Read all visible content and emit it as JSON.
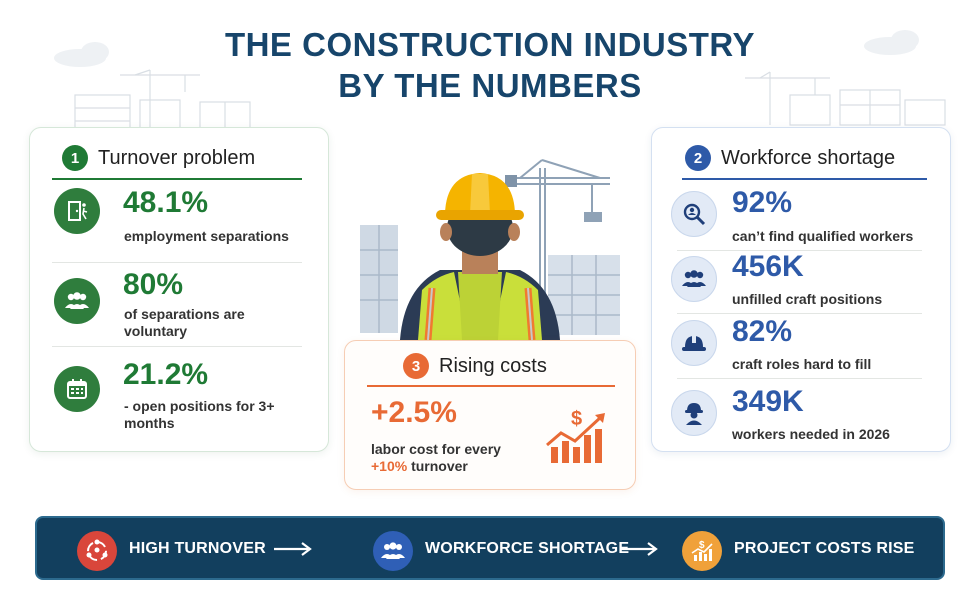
{
  "title": {
    "line1": "THE CONSTRUCTION INDUSTRY",
    "line2": "BY THE NUMBERS"
  },
  "turnover": {
    "number": "1",
    "heading": "Turnover problem",
    "color": "#1f7a35",
    "stats": [
      {
        "value": "48.1%",
        "label": "employment separations",
        "icon": "exit-door-icon"
      },
      {
        "value": "80%",
        "label": "of separations are voluntary",
        "icon": "people-group-icon"
      },
      {
        "value": "21.2%",
        "label": "- open positions for 3+ months",
        "icon": "calendar-icon"
      }
    ]
  },
  "shortage": {
    "number": "2",
    "heading": "Workforce shortage",
    "color": "#2e5aa8",
    "stats": [
      {
        "value": "92%",
        "label": "can’t find qualified workers",
        "icon": "magnifier-person-icon"
      },
      {
        "value": "456K",
        "label": "unfilled craft positions",
        "icon": "people-group-icon"
      },
      {
        "value": "82%",
        "label": "craft roles hard to fill",
        "icon": "hard-hat-icon"
      },
      {
        "value": "349K",
        "label": "workers needed in 2026",
        "icon": "worker-icon"
      }
    ]
  },
  "costs": {
    "number": "3",
    "heading": "Rising costs",
    "color": "#e86a35",
    "value": "+2.5%",
    "label_line1": "labor cost for every",
    "label_highlight": "+10%",
    "label_rest": "turnover",
    "icon": "dollar-chart-up-icon"
  },
  "banner": {
    "items": [
      {
        "label": "HIGH TURNOVER",
        "icon": "people-cycle-icon",
        "color": "#d9463b"
      },
      {
        "label": "WORKFORCE SHORTAGE",
        "icon": "people-group-icon",
        "color": "#2f5fb6"
      },
      {
        "label": "PROJECT COSTS RISE",
        "icon": "dollar-chart-up-icon",
        "color": "#f0a13a"
      }
    ]
  }
}
